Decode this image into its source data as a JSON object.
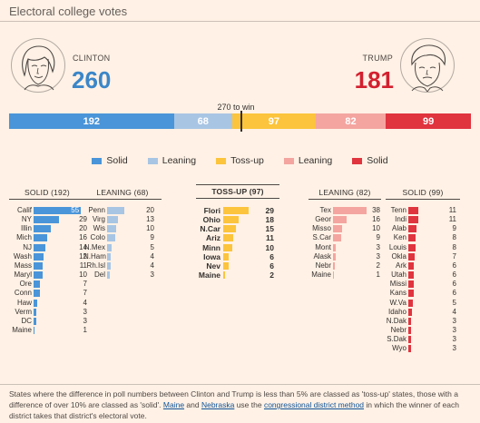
{
  "header": {
    "title": "Electoral college votes"
  },
  "candidates": {
    "clinton": {
      "name": "CLINTON",
      "total": "260"
    },
    "trump": {
      "name": "TRUMP",
      "total": "181"
    }
  },
  "win_label": "270 to win",
  "colors": {
    "clinton_solid": "#4a95d9",
    "clinton_leaning": "#a8c5e4",
    "tossup": "#fcc43c",
    "trump_leaning": "#f4a5a0",
    "trump_solid": "#e0343f",
    "clinton_text": "#3b86c8",
    "trump_text": "#d3202f"
  },
  "legend": [
    {
      "label": "Solid",
      "color": "#4a95d9"
    },
    {
      "label": "Leaning",
      "color": "#a8c5e4"
    },
    {
      "label": "Toss-up",
      "color": "#fcc43c"
    },
    {
      "label": "Leaning",
      "color": "#f4a5a0"
    },
    {
      "label": "Solid",
      "color": "#e0343f"
    }
  ],
  "chart_data": {
    "type": "bar",
    "total_bar": {
      "segments": [
        {
          "label": "192",
          "value": 192,
          "color": "#4a95d9"
        },
        {
          "label": "68",
          "value": 68,
          "color": "#a8c5e4"
        },
        {
          "label": "97",
          "value": 97,
          "color": "#fcc43c"
        },
        {
          "label": "82",
          "value": 82,
          "color": "#f4a5a0"
        },
        {
          "label": "99",
          "value": 99,
          "color": "#e0343f"
        }
      ],
      "win_threshold": 270,
      "total": 538
    },
    "groups": [
      {
        "id": "clinton-solid",
        "title": "SOLID (192)",
        "color": "#4a95d9",
        "style": "normal",
        "states": [
          {
            "name": "Calif",
            "value": 55
          },
          {
            "name": "NY",
            "value": 29
          },
          {
            "name": "Illin",
            "value": 20
          },
          {
            "name": "Mich",
            "value": 16
          },
          {
            "name": "NJ",
            "value": 14
          },
          {
            "name": "Wash",
            "value": 12
          },
          {
            "name": "Mass",
            "value": 11
          },
          {
            "name": "Maryl",
            "value": 10
          },
          {
            "name": "Ore",
            "value": 7
          },
          {
            "name": "Conn",
            "value": 7
          },
          {
            "name": "Haw",
            "value": 4
          },
          {
            "name": "Verm",
            "value": 3
          },
          {
            "name": "DC",
            "value": 3
          },
          {
            "name": "Maine",
            "value": 1
          }
        ]
      },
      {
        "id": "clinton-leaning",
        "title": "LEANING (68)",
        "color": "#a8c5e4",
        "style": "normal",
        "states": [
          {
            "name": "Penn",
            "value": 20
          },
          {
            "name": "Virg",
            "value": 13
          },
          {
            "name": "Wis",
            "value": 10
          },
          {
            "name": "Colo",
            "value": 9
          },
          {
            "name": "N.Mex",
            "value": 5
          },
          {
            "name": "N.Ham",
            "value": 4
          },
          {
            "name": "Rh.Isl",
            "value": 4
          },
          {
            "name": "Del",
            "value": 3
          }
        ]
      },
      {
        "id": "tossup",
        "title": "TOSS-UP (97)",
        "color": "#fcc43c",
        "style": "bold",
        "states": [
          {
            "name": "Flori",
            "value": 29
          },
          {
            "name": "Ohio",
            "value": 18
          },
          {
            "name": "N.Car",
            "value": 15
          },
          {
            "name": "Ariz",
            "value": 11
          },
          {
            "name": "Minn",
            "value": 10
          },
          {
            "name": "Iowa",
            "value": 6
          },
          {
            "name": "Nev",
            "value": 6
          },
          {
            "name": "Maine",
            "value": 2
          }
        ]
      },
      {
        "id": "trump-leaning",
        "title": "LEANING (82)",
        "color": "#f4a5a0",
        "style": "normal",
        "states": [
          {
            "name": "Tex",
            "value": 38
          },
          {
            "name": "Geor",
            "value": 16
          },
          {
            "name": "Misso",
            "value": 10
          },
          {
            "name": "S.Car",
            "value": 9
          },
          {
            "name": "Mont",
            "value": 3
          },
          {
            "name": "Alask",
            "value": 3
          },
          {
            "name": "Nebr",
            "value": 2
          },
          {
            "name": "Maine",
            "value": 1
          }
        ]
      },
      {
        "id": "trump-solid",
        "title": "SOLID (99)",
        "color": "#e0343f",
        "style": "normal",
        "states": [
          {
            "name": "Tenn",
            "value": 11
          },
          {
            "name": "Indi",
            "value": 11
          },
          {
            "name": "Alab",
            "value": 9
          },
          {
            "name": "Ken",
            "value": 8
          },
          {
            "name": "Louis",
            "value": 8
          },
          {
            "name": "Okla",
            "value": 7
          },
          {
            "name": "Ark",
            "value": 6
          },
          {
            "name": "Utah",
            "value": 6
          },
          {
            "name": "Missi",
            "value": 6
          },
          {
            "name": "Kans",
            "value": 6
          },
          {
            "name": "W.Va",
            "value": 5
          },
          {
            "name": "Idaho",
            "value": 4
          },
          {
            "name": "N.Dak",
            "value": 3
          },
          {
            "name": "Nebr",
            "value": 3
          },
          {
            "name": "S.Dak",
            "value": 3
          },
          {
            "name": "Wyo",
            "value": 3
          }
        ]
      }
    ]
  },
  "footnote": {
    "part1": "States where the difference in poll numbers between Clinton and Trump is less than 5% are classed as 'toss-up' states, those with a difference of over 10% are classed as 'solid'. ",
    "maine": "Maine",
    "and": " and ",
    "nebraska": "Nebraska",
    "use": " use the ",
    "method": "congressional district method",
    "part2": " in which the winner of each district takes that district's electoral vote."
  }
}
